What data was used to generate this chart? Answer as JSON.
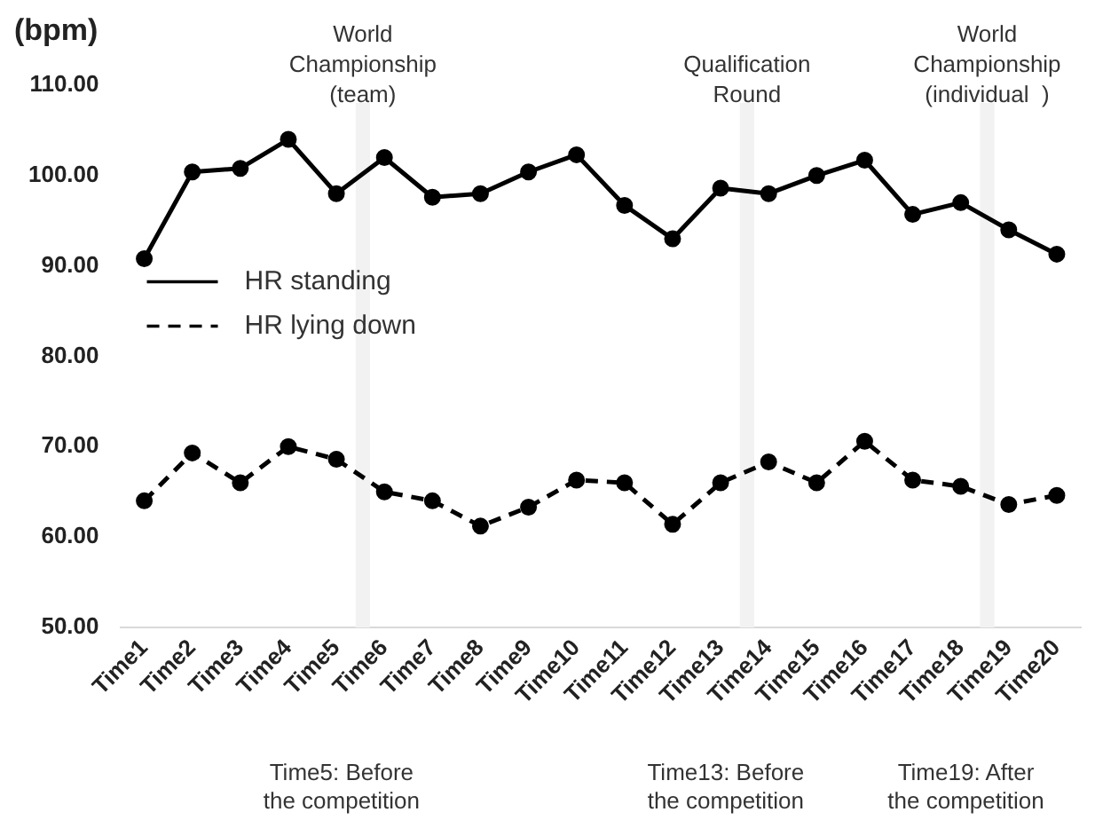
{
  "chart_data": {
    "type": "line",
    "ylabel": "(bpm)",
    "categories": [
      "Time1",
      "Time2",
      "Time3",
      "Time4",
      "Time5",
      "Time6",
      "Time7",
      "Time8",
      "Time9",
      "Time10",
      "Time11",
      "Time12",
      "Time13",
      "Time14",
      "Time15",
      "Time16",
      "Time17",
      "Time18",
      "Time19",
      "Time20"
    ],
    "series": [
      {
        "name": "HR standing",
        "color": "#000000",
        "line_style": "solid",
        "values": [
          90.8,
          100.4,
          100.8,
          104,
          98,
          102,
          97.6,
          98,
          100.4,
          102.3,
          96.7,
          93,
          98.6,
          98,
          100,
          101.7,
          95.7,
          97,
          94,
          91.3
        ]
      },
      {
        "name": "HR lying down",
        "color": "#000000",
        "line_style": "dashed",
        "values": [
          64,
          69.3,
          66,
          70,
          68.6,
          65,
          64,
          61.2,
          63.3,
          66.3,
          66,
          61.4,
          66,
          68.3,
          66,
          70.6,
          66.3,
          65.6,
          63.6,
          64.6
        ]
      }
    ],
    "ylim": [
      50,
      110
    ],
    "yticks": [
      {
        "value": 50,
        "label": "50.00"
      },
      {
        "value": 60,
        "label": "60.00"
      },
      {
        "value": 70,
        "label": "70.00"
      },
      {
        "value": 80,
        "label": "80.00"
      },
      {
        "value": 90,
        "label": "90.00"
      },
      {
        "value": 100,
        "label": "100.00"
      },
      {
        "value": 110,
        "label": "110.00"
      }
    ],
    "bands": [
      {
        "axis": "x",
        "from": "Time5",
        "to": "Time6",
        "label": "World\nChampionship\n(team)",
        "color": "#f2f2f2"
      },
      {
        "axis": "x",
        "from": "Time13",
        "to": "Time14",
        "label": "Qualification\nRound",
        "color": "#f2f2f2"
      },
      {
        "axis": "x",
        "from": "Time18",
        "to": "Time19",
        "label": "World\nChampionship\n(individual  )",
        "color": "#f2f2f2"
      }
    ],
    "annotations": [
      "Time5: Before\nthe competition",
      "Time13: Before\nthe competition",
      "Time19: After\nthe competition"
    ],
    "marker": "circle",
    "grid": false,
    "legend": "left"
  }
}
